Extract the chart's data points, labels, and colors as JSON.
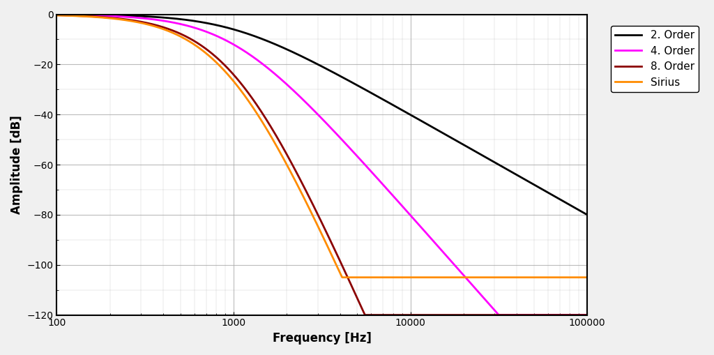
{
  "title": "",
  "xlabel": "Frequency [Hz]",
  "ylabel": "Amplitude [dB]",
  "xmin": 100,
  "xmax": 100000,
  "ymin": -120,
  "ymax": 0,
  "yticks": [
    0,
    -20,
    -40,
    -60,
    -80,
    -100,
    -120
  ],
  "fc": 1000,
  "colors": {
    "order2": "#000000",
    "order4": "#ff00ff",
    "order8": "#8b0000",
    "sirius": "#ff8c00"
  },
  "legend_labels": [
    "2. Order",
    "4. Order",
    "8. Order",
    "Sirius"
  ],
  "background_color": "#f0f0f0",
  "plot_background": "#ffffff",
  "grid_color": "#aaaaaa",
  "linewidth": 2.0
}
